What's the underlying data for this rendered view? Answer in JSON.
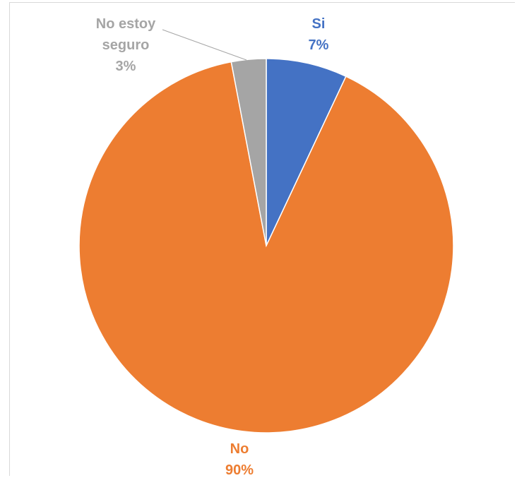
{
  "chart_data": {
    "type": "pie",
    "title": "",
    "slices": [
      {
        "label": "Si",
        "value": 7,
        "percent_label": "7%",
        "color": "#4472C4"
      },
      {
        "label": "No",
        "value": 90,
        "percent_label": "90%",
        "color": "#ED7D31"
      },
      {
        "label": "No estoy seguro",
        "label_lines": [
          "No estoy",
          "seguro"
        ],
        "value": 3,
        "percent_label": "3%",
        "color": "#A5A5A5"
      }
    ],
    "label_position": "outside",
    "legend": "none"
  }
}
